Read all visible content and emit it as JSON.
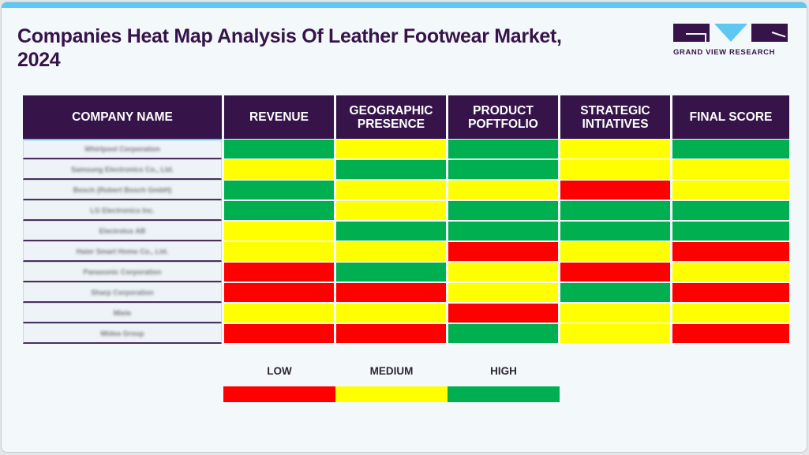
{
  "header": {
    "title": "Companies Heat Map Analysis Of Leather Footwear Market, 2024",
    "logo_text": "GRAND VIEW RESEARCH"
  },
  "colors": {
    "low": "#ff0000",
    "medium": "#ffff00",
    "high": "#00b050",
    "header_bg": "#36144a",
    "accent": "#5ec7f2"
  },
  "table": {
    "columns": [
      "COMPANY NAME",
      "REVENUE",
      "GEOGRAPHIC PRESENCE",
      "PRODUCT POFTFOLIO",
      "STRATEGIC INTIATIVES",
      "FINAL SCORE"
    ],
    "rows": [
      {
        "company": "Whirlpool Corporation",
        "ratings": [
          "HIGH",
          "MEDIUM",
          "HIGH",
          "MEDIUM",
          "HIGH"
        ]
      },
      {
        "company": "Samsung Electronics Co., Ltd.",
        "ratings": [
          "MEDIUM",
          "HIGH",
          "HIGH",
          "MEDIUM",
          "MEDIUM"
        ]
      },
      {
        "company": "Bosch (Robert Bosch GmbH)",
        "ratings": [
          "HIGH",
          "MEDIUM",
          "MEDIUM",
          "LOW",
          "MEDIUM"
        ]
      },
      {
        "company": "LG Electronics Inc.",
        "ratings": [
          "HIGH",
          "MEDIUM",
          "HIGH",
          "HIGH",
          "HIGH"
        ]
      },
      {
        "company": "Electrolux AB",
        "ratings": [
          "MEDIUM",
          "HIGH",
          "HIGH",
          "HIGH",
          "HIGH"
        ]
      },
      {
        "company": "Haier Smart Home Co., Ltd.",
        "ratings": [
          "MEDIUM",
          "MEDIUM",
          "LOW",
          "MEDIUM",
          "LOW"
        ]
      },
      {
        "company": "Panasonic Corporation",
        "ratings": [
          "LOW",
          "HIGH",
          "MEDIUM",
          "LOW",
          "MEDIUM"
        ]
      },
      {
        "company": "Sharp Corporation",
        "ratings": [
          "LOW",
          "LOW",
          "MEDIUM",
          "HIGH",
          "LOW"
        ]
      },
      {
        "company": "Miele",
        "ratings": [
          "MEDIUM",
          "MEDIUM",
          "LOW",
          "MEDIUM",
          "MEDIUM"
        ]
      },
      {
        "company": "Midea Group",
        "ratings": [
          "LOW",
          "LOW",
          "HIGH",
          "MEDIUM",
          "LOW"
        ]
      }
    ]
  },
  "legend": [
    {
      "label": "LOW",
      "color": "#ff0000"
    },
    {
      "label": "MEDIUM",
      "color": "#ffff00"
    },
    {
      "label": "HIGH",
      "color": "#00b050"
    }
  ],
  "chart_data": {
    "type": "heatmap",
    "title": "Companies Heat Map Analysis Of Leather Footwear Market, 2024",
    "x": [
      "REVENUE",
      "GEOGRAPHIC PRESENCE",
      "PRODUCT POFTFOLIO",
      "STRATEGIC INTIATIVES",
      "FINAL SCORE"
    ],
    "y": [
      "Whirlpool Corporation",
      "Samsung Electronics Co., Ltd.",
      "Bosch (Robert Bosch GmbH)",
      "LG Electronics Inc.",
      "Electrolux AB",
      "Haier Smart Home Co., Ltd.",
      "Panasonic Corporation",
      "Sharp Corporation",
      "Miele",
      "Midea Group"
    ],
    "scale": [
      "LOW",
      "MEDIUM",
      "HIGH"
    ],
    "values": [
      [
        "HIGH",
        "MEDIUM",
        "HIGH",
        "MEDIUM",
        "HIGH"
      ],
      [
        "MEDIUM",
        "HIGH",
        "HIGH",
        "MEDIUM",
        "MEDIUM"
      ],
      [
        "HIGH",
        "MEDIUM",
        "MEDIUM",
        "LOW",
        "MEDIUM"
      ],
      [
        "HIGH",
        "MEDIUM",
        "HIGH",
        "HIGH",
        "HIGH"
      ],
      [
        "MEDIUM",
        "HIGH",
        "HIGH",
        "HIGH",
        "HIGH"
      ],
      [
        "MEDIUM",
        "MEDIUM",
        "LOW",
        "MEDIUM",
        "LOW"
      ],
      [
        "LOW",
        "HIGH",
        "MEDIUM",
        "LOW",
        "MEDIUM"
      ],
      [
        "LOW",
        "LOW",
        "MEDIUM",
        "HIGH",
        "LOW"
      ],
      [
        "MEDIUM",
        "MEDIUM",
        "LOW",
        "MEDIUM",
        "MEDIUM"
      ],
      [
        "LOW",
        "LOW",
        "HIGH",
        "MEDIUM",
        "LOW"
      ]
    ],
    "legend": {
      "LOW": "#ff0000",
      "MEDIUM": "#ffff00",
      "HIGH": "#00b050"
    },
    "legend_position": "bottom"
  }
}
